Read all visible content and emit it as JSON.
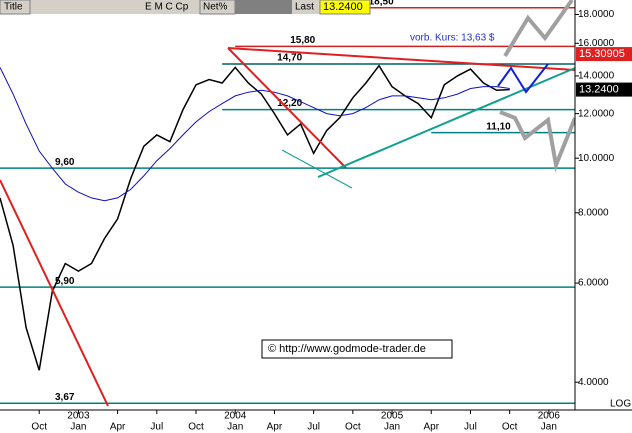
{
  "header": {
    "title": "Title",
    "symbol": "E M C Cp",
    "net": "Net%",
    "last": "Last",
    "last_value": "13.2400"
  },
  "chart_data": {
    "type": "line",
    "log_scale": true,
    "ylim": [
      3.57,
      19.1
    ],
    "xlim": [
      "2002-07",
      "2006-03"
    ],
    "yticks": [
      {
        "value": 4,
        "label": "4.0000"
      },
      {
        "value": 6,
        "label": "6.0000"
      },
      {
        "value": 8,
        "label": "8.0000"
      },
      {
        "value": 10,
        "label": "10.0000"
      },
      {
        "value": 12,
        "label": "12.0000"
      },
      {
        "value": 14,
        "label": "14.0000"
      },
      {
        "value": 16,
        "label": "16.0000"
      },
      {
        "value": 18,
        "label": "18.0000"
      }
    ],
    "xticks": [
      {
        "value": "2002-10",
        "label": "Oct"
      },
      {
        "value": "2003-01",
        "label": "Jan"
      },
      {
        "value": "2003-04",
        "label": "Apr"
      },
      {
        "value": "2003-07",
        "label": "Jul"
      },
      {
        "value": "2003-10",
        "label": "Oct"
      },
      {
        "value": "2004-01",
        "label": "Jan"
      },
      {
        "value": "2004-04",
        "label": "Apr"
      },
      {
        "value": "2004-07",
        "label": "Jul"
      },
      {
        "value": "2004-10",
        "label": "Oct"
      },
      {
        "value": "2005-01",
        "label": "Jan"
      },
      {
        "value": "2005-04",
        "label": "Apr"
      },
      {
        "value": "2005-07",
        "label": "Jul"
      },
      {
        "value": "2005-10",
        "label": "Oct"
      },
      {
        "value": "2006-01",
        "label": "Jan"
      }
    ],
    "year_labels": [
      {
        "value": "2003-01",
        "label": "2003"
      },
      {
        "value": "2004-01",
        "label": "2004"
      },
      {
        "value": "2005-01",
        "label": "2005"
      },
      {
        "value": "2006-01",
        "label": "2006"
      }
    ],
    "x": [
      "2002-07",
      "2002-08",
      "2002-09",
      "2002-10",
      "2002-11",
      "2002-12",
      "2003-01",
      "2003-02",
      "2003-03",
      "2003-04",
      "2003-05",
      "2003-06",
      "2003-07",
      "2003-08",
      "2003-09",
      "2003-10",
      "2003-11",
      "2003-12",
      "2004-01",
      "2004-02",
      "2004-03",
      "2004-04",
      "2004-05",
      "2004-06",
      "2004-07",
      "2004-08",
      "2004-09",
      "2004-10",
      "2004-11",
      "2004-12",
      "2005-01",
      "2005-02",
      "2005-03",
      "2005-04",
      "2005-05",
      "2005-06",
      "2005-07",
      "2005-08",
      "2005-09",
      "2005-10"
    ],
    "series": [
      {
        "name": "EMC",
        "color": "#000000",
        "values": [
          8.5,
          7.0,
          5.0,
          4.2,
          5.8,
          6.5,
          6.3,
          6.5,
          7.2,
          7.8,
          9.2,
          10.5,
          11.0,
          10.7,
          12.2,
          13.5,
          13.8,
          13.6,
          14.5,
          13.6,
          13.0,
          12.0,
          11.0,
          11.5,
          10.2,
          11.2,
          11.8,
          12.8,
          13.6,
          14.6,
          13.4,
          12.9,
          12.5,
          11.8,
          13.5,
          14.0,
          14.4,
          13.6,
          13.2,
          13.24
        ]
      },
      {
        "name": "MA",
        "color": "#1010c0",
        "values": [
          14.5,
          13.0,
          11.5,
          10.3,
          9.6,
          9.0,
          8.7,
          8.5,
          8.4,
          8.5,
          8.8,
          9.3,
          9.9,
          10.4,
          11.0,
          11.6,
          12.1,
          12.5,
          12.9,
          13.1,
          13.2,
          13.1,
          12.9,
          12.6,
          12.3,
          12.0,
          11.9,
          12.0,
          12.3,
          12.7,
          12.9,
          12.9,
          12.8,
          12.7,
          12.8,
          13.0,
          13.3,
          13.4,
          13.4,
          13.3
        ]
      }
    ],
    "levels": [
      {
        "value": 18.5,
        "label": "18,50",
        "color": "#d02020",
        "from": "2004-07"
      },
      {
        "value": 15.8,
        "label": "15,80",
        "color": "#d02020",
        "from": "2004-01"
      },
      {
        "value": 14.7,
        "label": "14,70",
        "color": "#006060",
        "from": "2003-12"
      },
      {
        "value": 12.2,
        "label": "12,20",
        "color": "#008080",
        "from": "2003-12"
      },
      {
        "value": 11.1,
        "label": "11,10",
        "color": "#008080",
        "from": "2005-04"
      },
      {
        "value": 9.6,
        "label": "9,60",
        "color": "#008080",
        "from": "2002-07"
      },
      {
        "value": 5.9,
        "label": "5,90",
        "color": "#008080",
        "from": "2002-07"
      },
      {
        "value": 3.67,
        "label": "3,67",
        "color": "#008080",
        "from": "2002-07"
      }
    ],
    "price_flags": [
      {
        "value": 15.30905,
        "label": "15.30905",
        "color": "#e02020"
      },
      {
        "value": 13.24,
        "label": "13.2400",
        "color": "#000000"
      }
    ],
    "annotations": {
      "prev_close": "vorb. Kurs: 13,63 $",
      "source": "© http://www.godmode-trader.de",
      "scale": "LOG"
    }
  }
}
